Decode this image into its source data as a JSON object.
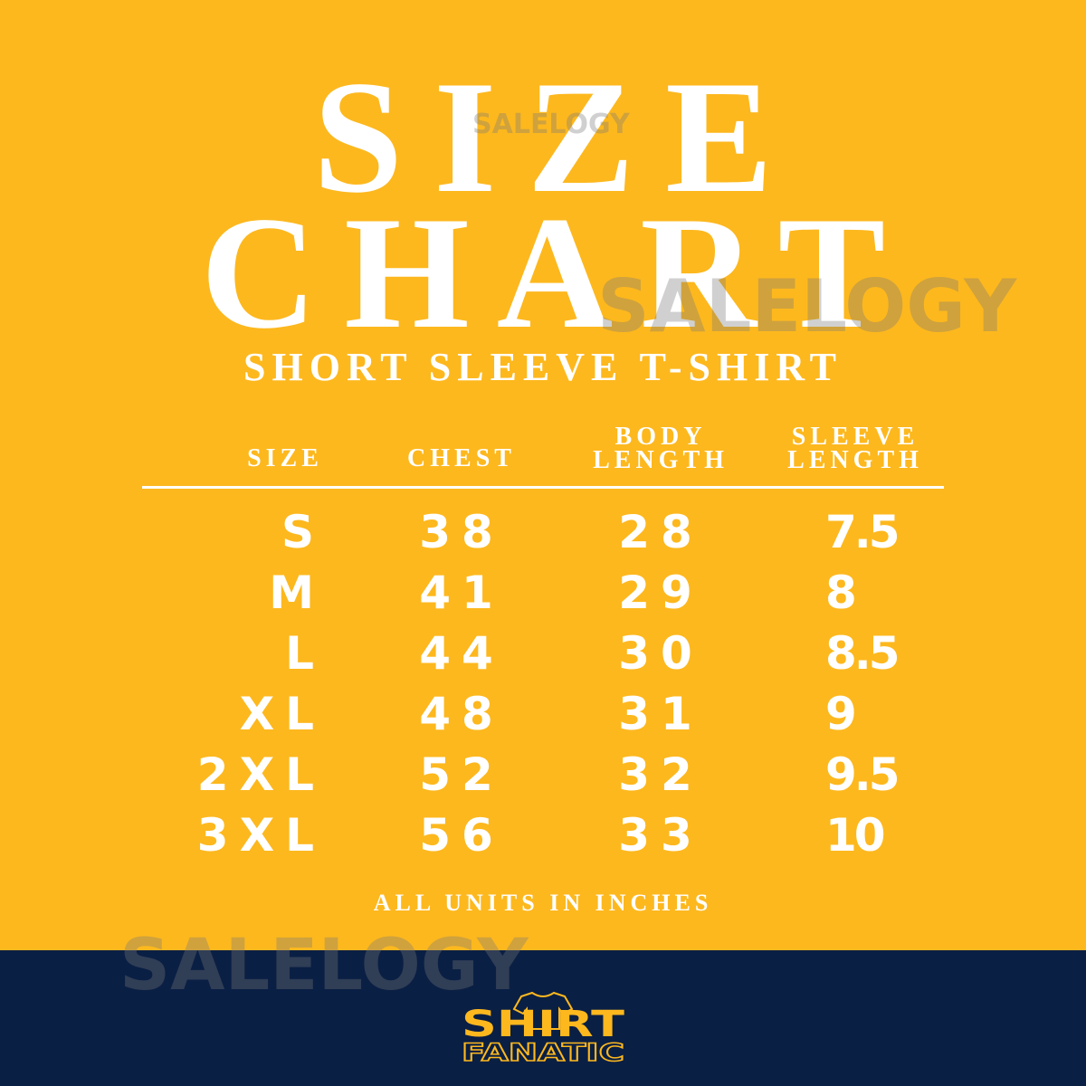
{
  "title_line1": "SIZE",
  "title_line2": "CHART",
  "subtitle": "SHORT SLEEVE T-SHIRT",
  "watermark": "SALELOGY",
  "colors": {
    "background": "#FDB81E",
    "band": "#0A1F44",
    "text": "#FFFFFF",
    "logo": "#FDB81E"
  },
  "chart_data": {
    "type": "table",
    "headers": [
      "SIZE",
      "CHEST",
      "BODY LENGTH",
      "SLEEVE LENGTH"
    ],
    "header_lines": {
      "size": "SIZE",
      "chest": "CHEST",
      "body1": "BODY",
      "body2": "LENGTH",
      "sleeve1": "SLEEVE",
      "sleeve2": "LENGTH"
    },
    "rows": [
      {
        "size": "S",
        "chest": "38",
        "body": "28",
        "sleeve": "7.5"
      },
      {
        "size": "M",
        "chest": "41",
        "body": "29",
        "sleeve": "8"
      },
      {
        "size": "L",
        "chest": "44",
        "body": "30",
        "sleeve": "8.5"
      },
      {
        "size": "XL",
        "chest": "48",
        "body": "31",
        "sleeve": "9"
      },
      {
        "size": "2XL",
        "chest": "52",
        "body": "32",
        "sleeve": "9.5"
      },
      {
        "size": "3XL",
        "chest": "56",
        "body": "33",
        "sleeve": "10"
      }
    ],
    "units": "ALL UNITS IN INCHES"
  },
  "logo": {
    "line1": "SHIRT",
    "line2": "FANATIC",
    "icon": "t-shirt-icon"
  }
}
